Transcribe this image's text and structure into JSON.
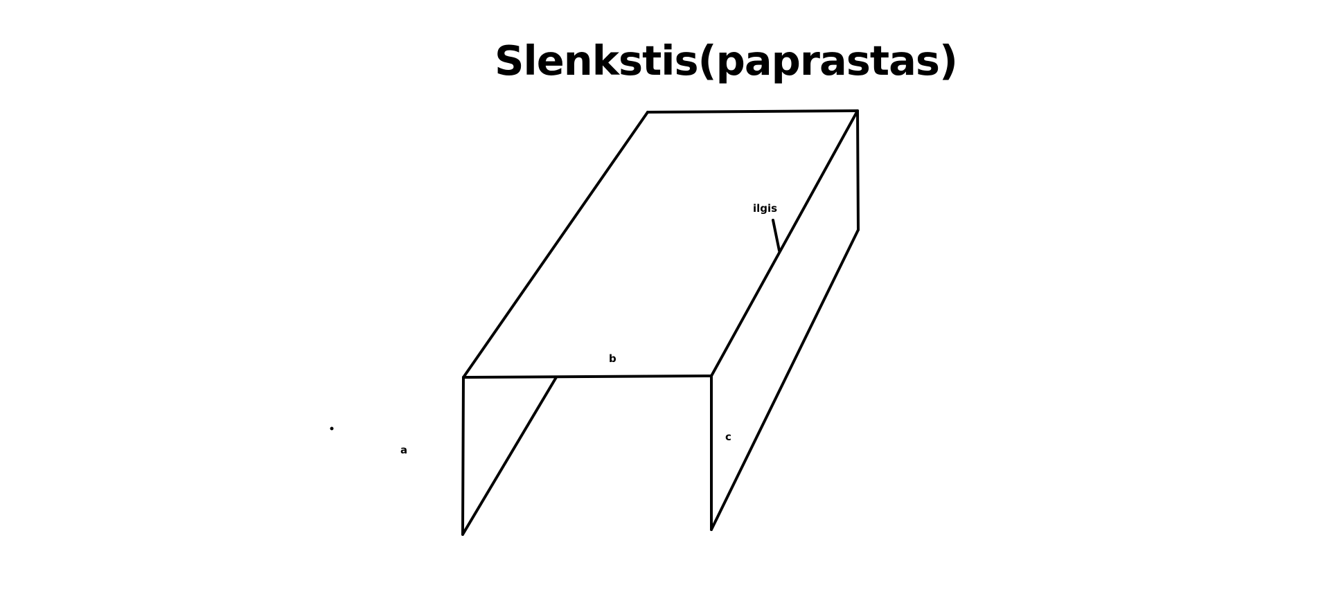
{
  "diagram": {
    "title": "Slenkstis(paprastas)",
    "labels": {
      "length": "ilgis",
      "b": "b",
      "c": "c",
      "a": "a"
    },
    "colors": {
      "background": "#ffffff",
      "stroke": "#000000",
      "text": "#000000"
    }
  }
}
